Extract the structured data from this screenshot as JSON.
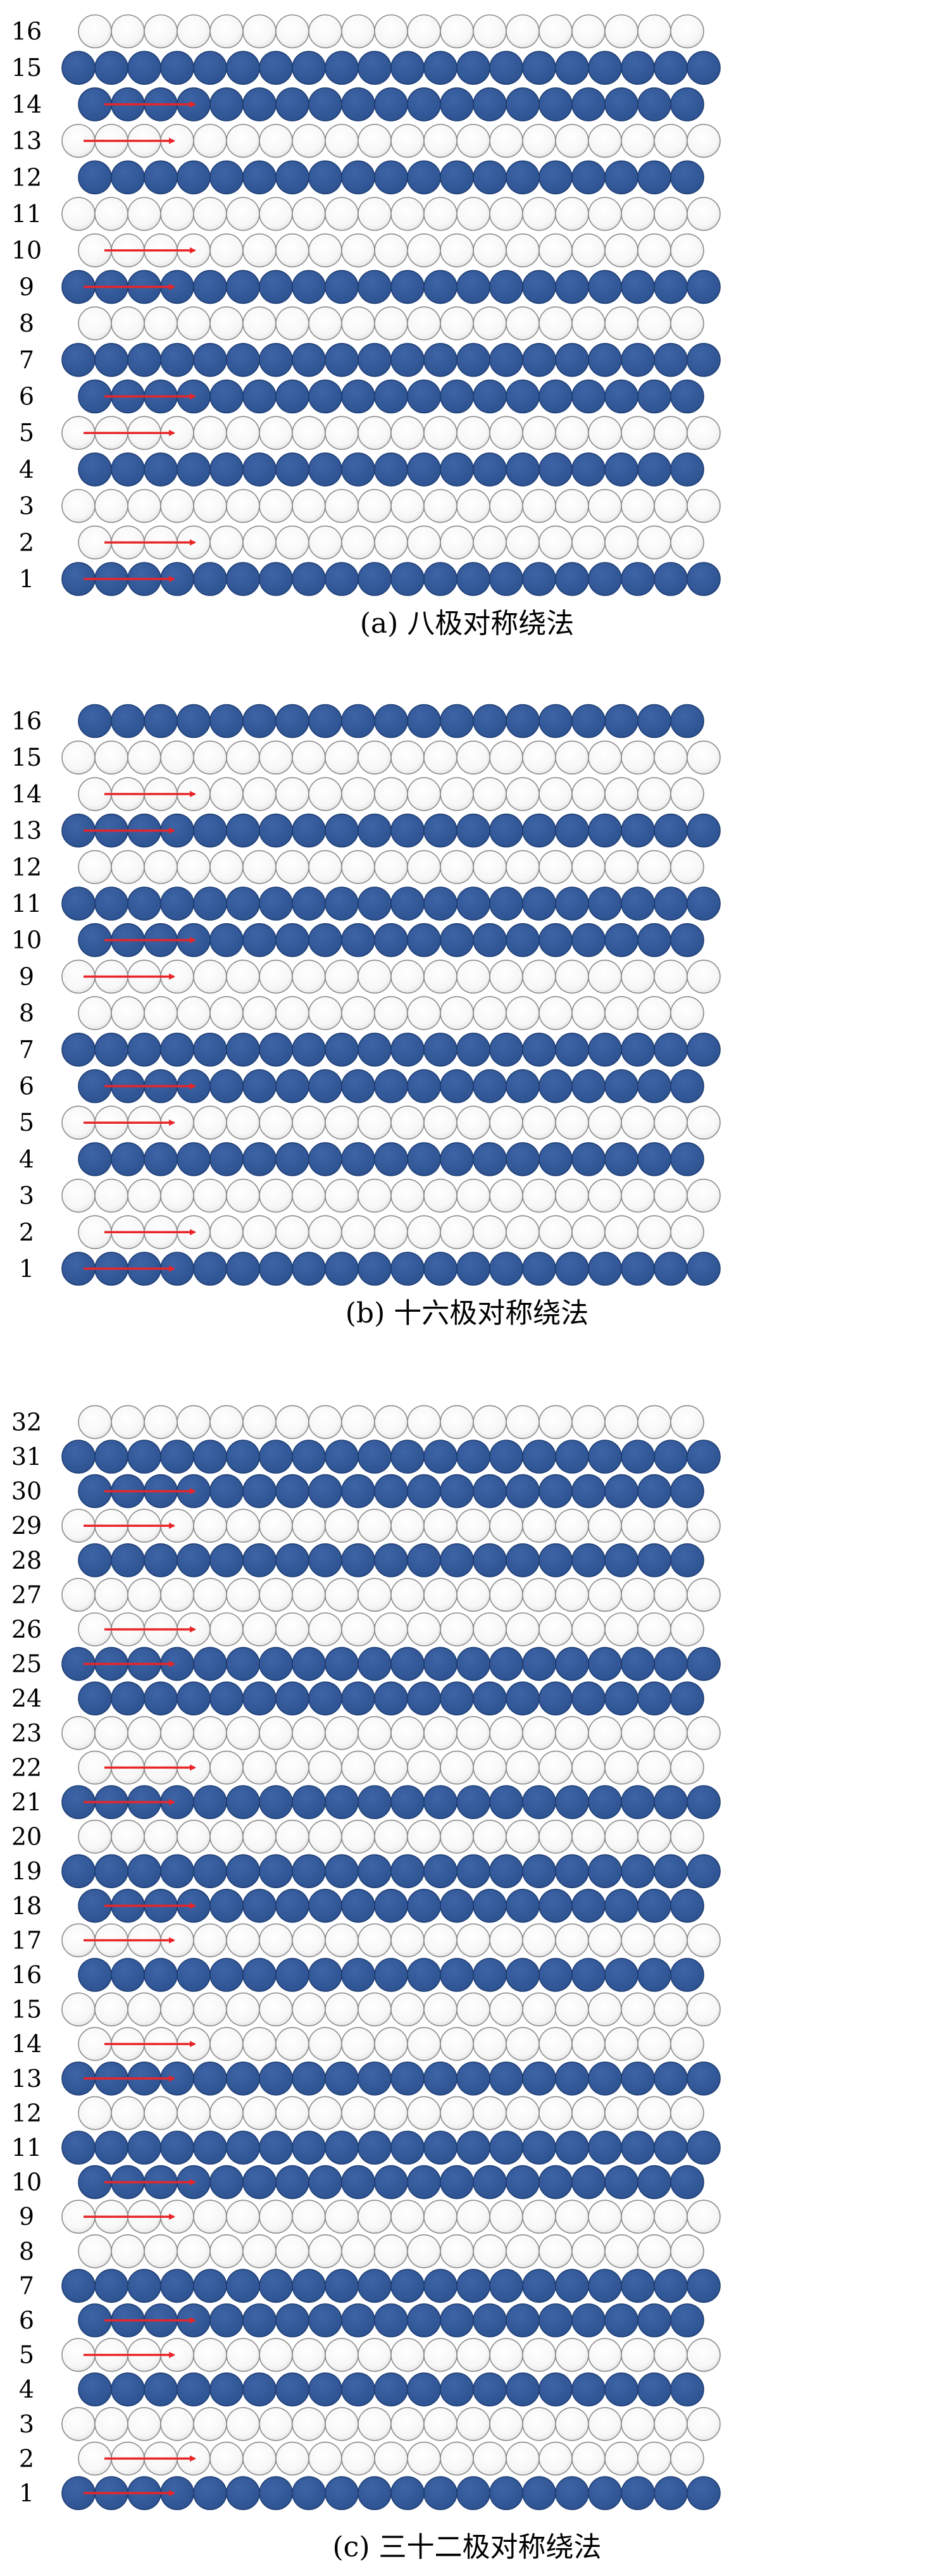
{
  "colors": {
    "filled": "#2d5291",
    "filled_stroke": "#1e3d73",
    "empty": "#ffffff",
    "empty_gradient_edge": "#e2e2e2",
    "empty_stroke": "#8c8c8c",
    "arrow": "#e8262a"
  },
  "panels": [
    {
      "caption": "(a) 八极对称绕法",
      "layers": [
        {
          "label": "1",
          "filled": true,
          "arrow": true
        },
        {
          "label": "2",
          "filled": false,
          "arrow": true
        },
        {
          "label": "3",
          "filled": false,
          "arrow": false
        },
        {
          "label": "4",
          "filled": true,
          "arrow": false
        },
        {
          "label": "5",
          "filled": false,
          "arrow": true
        },
        {
          "label": "6",
          "filled": true,
          "arrow": true
        },
        {
          "label": "7",
          "filled": true,
          "arrow": false
        },
        {
          "label": "8",
          "filled": false,
          "arrow": false
        },
        {
          "label": "9",
          "filled": true,
          "arrow": true
        },
        {
          "label": "10",
          "filled": false,
          "arrow": true
        },
        {
          "label": "11",
          "filled": false,
          "arrow": false
        },
        {
          "label": "12",
          "filled": true,
          "arrow": false
        },
        {
          "label": "13",
          "filled": false,
          "arrow": true
        },
        {
          "label": "14",
          "filled": true,
          "arrow": true
        },
        {
          "label": "15",
          "filled": true,
          "arrow": false
        },
        {
          "label": "16",
          "filled": false,
          "arrow": false
        }
      ]
    },
    {
      "caption": "(b) 十六极对称绕法",
      "layers": [
        {
          "label": "1",
          "filled": true,
          "arrow": true
        },
        {
          "label": "2",
          "filled": false,
          "arrow": true
        },
        {
          "label": "3",
          "filled": false,
          "arrow": false
        },
        {
          "label": "4",
          "filled": true,
          "arrow": false
        },
        {
          "label": "5",
          "filled": false,
          "arrow": true
        },
        {
          "label": "6",
          "filled": true,
          "arrow": true
        },
        {
          "label": "7",
          "filled": true,
          "arrow": false
        },
        {
          "label": "8",
          "filled": false,
          "arrow": false
        },
        {
          "label": "9",
          "filled": false,
          "arrow": true
        },
        {
          "label": "10",
          "filled": true,
          "arrow": true
        },
        {
          "label": "11",
          "filled": true,
          "arrow": false
        },
        {
          "label": "12",
          "filled": false,
          "arrow": false
        },
        {
          "label": "13",
          "filled": true,
          "arrow": true
        },
        {
          "label": "14",
          "filled": false,
          "arrow": true
        },
        {
          "label": "15",
          "filled": false,
          "arrow": false
        },
        {
          "label": "16",
          "filled": true,
          "arrow": false
        }
      ]
    },
    {
      "caption": "(c) 三十二极对称绕法",
      "layers": [
        {
          "label": "1",
          "filled": true,
          "arrow": true
        },
        {
          "label": "2",
          "filled": false,
          "arrow": true
        },
        {
          "label": "3",
          "filled": false,
          "arrow": false
        },
        {
          "label": "4",
          "filled": true,
          "arrow": false
        },
        {
          "label": "5",
          "filled": false,
          "arrow": true
        },
        {
          "label": "6",
          "filled": true,
          "arrow": true
        },
        {
          "label": "7",
          "filled": true,
          "arrow": false
        },
        {
          "label": "8",
          "filled": false,
          "arrow": false
        },
        {
          "label": "9",
          "filled": false,
          "arrow": true
        },
        {
          "label": "10",
          "filled": true,
          "arrow": true
        },
        {
          "label": "11",
          "filled": true,
          "arrow": false
        },
        {
          "label": "12",
          "filled": false,
          "arrow": false
        },
        {
          "label": "13",
          "filled": true,
          "arrow": true
        },
        {
          "label": "14",
          "filled": false,
          "arrow": true
        },
        {
          "label": "15",
          "filled": false,
          "arrow": false
        },
        {
          "label": "16",
          "filled": true,
          "arrow": false
        },
        {
          "label": "17",
          "filled": false,
          "arrow": true
        },
        {
          "label": "18",
          "filled": true,
          "arrow": true
        },
        {
          "label": "19",
          "filled": true,
          "arrow": false
        },
        {
          "label": "20",
          "filled": false,
          "arrow": false
        },
        {
          "label": "21",
          "filled": true,
          "arrow": true
        },
        {
          "label": "22",
          "filled": false,
          "arrow": true
        },
        {
          "label": "23",
          "filled": false,
          "arrow": false
        },
        {
          "label": "24",
          "filled": true,
          "arrow": false
        },
        {
          "label": "25",
          "filled": true,
          "arrow": true
        },
        {
          "label": "26",
          "filled": false,
          "arrow": true
        },
        {
          "label": "27",
          "filled": false,
          "arrow": false
        },
        {
          "label": "28",
          "filled": true,
          "arrow": false
        },
        {
          "label": "29",
          "filled": false,
          "arrow": true
        },
        {
          "label": "30",
          "filled": true,
          "arrow": true
        },
        {
          "label": "31",
          "filled": true,
          "arrow": false
        },
        {
          "label": "32",
          "filled": false,
          "arrow": false
        }
      ]
    }
  ]
}
